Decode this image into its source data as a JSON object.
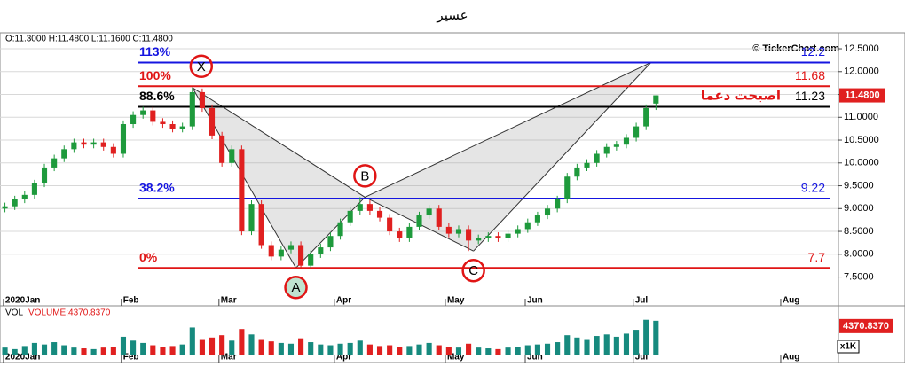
{
  "chart_data": {
    "type": "candlestick",
    "title": "عسير",
    "ohlc_label": "O:11.3000   H:11.4800  L:11.1600  C:11.4800",
    "watermark": "© TickerChart.com",
    "last_label": "11.4800",
    "last_value": 11.48,
    "xlim": [
      0,
      170
    ],
    "xticks": [
      {
        "value": 0.7,
        "label": "2020Jan"
      },
      {
        "value": 24.6,
        "label": "Feb"
      },
      {
        "value": 44.4,
        "label": "Mar"
      },
      {
        "value": 67.8,
        "label": "Apr"
      },
      {
        "value": 90.3,
        "label": "May"
      },
      {
        "value": 106.5,
        "label": "Jun"
      },
      {
        "value": 128.4,
        "label": "Jul"
      },
      {
        "value": 158.3,
        "label": "Aug"
      }
    ],
    "ylim": [
      6.87,
      12.85
    ],
    "yticks": [
      {
        "value": 12.5,
        "label": "12.5000"
      },
      {
        "value": 12,
        "label": "12.0000"
      },
      {
        "value": 11.5,
        "label": "11.5000"
      },
      {
        "value": 11,
        "label": "11.0000"
      },
      {
        "value": 10.5,
        "label": "10.5000"
      },
      {
        "value": 10,
        "label": "10.0000"
      },
      {
        "value": 9.5,
        "label": "9.5000"
      },
      {
        "value": 9,
        "label": "9.0000"
      },
      {
        "value": 8.5,
        "label": "8.5000"
      },
      {
        "value": 8,
        "label": "8.0000"
      },
      {
        "value": 7.5,
        "label": "7.5000"
      }
    ],
    "grid": true,
    "up_color": "#1e9a3c",
    "down_color": "#e02020",
    "x": [
      1,
      3,
      5,
      7,
      9,
      11,
      13,
      15,
      17,
      19,
      21,
      23,
      25,
      27,
      29,
      31,
      33,
      35,
      37,
      39,
      41,
      43,
      45,
      47,
      49,
      51,
      53,
      55,
      57,
      59,
      61,
      63,
      65,
      67,
      69,
      71,
      73,
      75,
      77,
      79,
      81,
      83,
      85,
      87,
      89,
      91,
      93,
      95,
      97,
      99,
      101,
      103,
      105,
      107,
      109,
      111,
      113,
      115,
      117,
      119,
      121,
      123,
      125,
      127,
      129,
      131,
      133
    ],
    "open": [
      9.0,
      9.05,
      9.2,
      9.3,
      9.55,
      9.9,
      10.1,
      10.3,
      10.45,
      10.4,
      10.45,
      10.35,
      10.2,
      10.85,
      11.05,
      11.15,
      10.9,
      10.85,
      10.75,
      10.8,
      11.55,
      11.2,
      10.6,
      10.0,
      10.3,
      8.5,
      9.1,
      8.2,
      7.95,
      8.1,
      8.2,
      7.75,
      8.0,
      8.15,
      8.4,
      8.7,
      8.95,
      9.1,
      8.95,
      8.8,
      8.5,
      8.35,
      8.6,
      8.85,
      9.0,
      8.6,
      8.45,
      8.55,
      8.3,
      8.35,
      8.4,
      8.35,
      8.45,
      8.55,
      8.7,
      8.85,
      9.0,
      9.2,
      9.7,
      9.9,
      10.0,
      10.2,
      10.35,
      10.4,
      10.55,
      10.8,
      11.3
    ],
    "high": [
      9.13,
      9.28,
      9.38,
      9.63,
      9.98,
      10.18,
      10.38,
      10.53,
      10.53,
      10.53,
      10.53,
      10.43,
      10.93,
      11.13,
      11.23,
      11.23,
      10.98,
      10.93,
      10.88,
      11.65,
      11.63,
      11.28,
      10.68,
      10.38,
      10.38,
      9.18,
      9.18,
      8.28,
      8.18,
      8.28,
      8.28,
      8.08,
      8.23,
      8.48,
      8.78,
      9.03,
      9.25,
      9.18,
      9.03,
      8.88,
      8.58,
      8.68,
      8.93,
      9.08,
      9.08,
      8.68,
      8.63,
      8.63,
      8.43,
      8.48,
      8.48,
      8.53,
      8.63,
      8.78,
      8.93,
      9.08,
      9.28,
      9.78,
      9.98,
      10.08,
      10.28,
      10.43,
      10.48,
      10.63,
      10.88,
      11.28,
      11.48
    ],
    "low": [
      8.92,
      8.97,
      9.12,
      9.22,
      9.47,
      9.82,
      10.02,
      10.22,
      10.32,
      10.32,
      10.27,
      10.12,
      10.12,
      10.77,
      10.97,
      10.82,
      10.77,
      10.67,
      10.67,
      10.72,
      11.12,
      10.52,
      9.92,
      9.92,
      8.42,
      8.42,
      8.12,
      7.87,
      7.87,
      8.02,
      7.7,
      7.7,
      7.92,
      8.07,
      8.32,
      8.62,
      8.87,
      8.87,
      8.72,
      8.42,
      8.27,
      8.27,
      8.52,
      8.77,
      8.52,
      8.37,
      8.37,
      8.07,
      8.22,
      8.27,
      8.27,
      8.27,
      8.37,
      8.47,
      8.62,
      8.77,
      8.92,
      9.12,
      9.62,
      9.82,
      9.92,
      10.12,
      10.27,
      10.32,
      10.47,
      10.72,
      11.16
    ],
    "close": [
      9.05,
      9.2,
      9.3,
      9.55,
      9.9,
      10.1,
      10.3,
      10.45,
      10.4,
      10.45,
      10.35,
      10.2,
      10.85,
      11.05,
      11.15,
      10.9,
      10.85,
      10.75,
      10.8,
      11.55,
      11.2,
      10.6,
      10.0,
      10.3,
      8.5,
      9.1,
      8.2,
      7.95,
      8.1,
      8.2,
      7.75,
      8.0,
      8.15,
      8.4,
      8.7,
      8.95,
      9.1,
      8.95,
      8.8,
      8.5,
      8.35,
      8.6,
      8.85,
      9.0,
      8.6,
      8.45,
      8.55,
      8.3,
      8.35,
      8.4,
      8.35,
      8.45,
      8.55,
      8.7,
      8.85,
      9.0,
      9.2,
      9.7,
      9.9,
      10.0,
      10.2,
      10.35,
      10.4,
      10.55,
      10.8,
      11.2,
      11.48
    ],
    "volume_title": "VOL",
    "volume_label": "VOLUME:4370.8370",
    "volume_last_label": "4370.8370",
    "volume_unit": "x1K",
    "volume_ylim": [
      0,
      5500
    ],
    "volume": [
      900,
      700,
      1100,
      1500,
      1300,
      1600,
      1200,
      900,
      800,
      700,
      900,
      1000,
      2300,
      1800,
      1500,
      1200,
      1000,
      1100,
      1300,
      3500,
      2000,
      2200,
      2500,
      1800,
      3300,
      2600,
      2000,
      1700,
      1500,
      1400,
      2100,
      1600,
      1300,
      1200,
      1400,
      1500,
      1800,
      1300,
      1100,
      1200,
      1000,
      1100,
      1300,
      1500,
      1200,
      1000,
      900,
      1400,
      900,
      800,
      700,
      900,
      1000,
      1200,
      1300,
      1400,
      1600,
      2500,
      2200,
      2000,
      2400,
      2600,
      2300,
      2700,
      3200,
      4500,
      4370.837
    ],
    "levels": [
      {
        "label": "113%",
        "value": 12.2,
        "color": "#1515e0"
      },
      {
        "label": "100%",
        "value": 11.68,
        "color": "#e01515"
      },
      {
        "label": "88.6%",
        "value": 11.23,
        "color": "#000000"
      },
      {
        "label": "38.2%",
        "value": 9.22,
        "color": "#1515e0"
      },
      {
        "label": "0%",
        "value": 7.7,
        "color": "#e01515"
      }
    ],
    "support_note": "اصبحت دعما",
    "pattern": {
      "labels": [
        "X",
        "A",
        "B",
        "C",
        null
      ],
      "x": [
        39,
        60,
        74,
        96,
        132
      ],
      "y": [
        11.65,
        7.7,
        9.25,
        8.07,
        12.2
      ],
      "color": "#e01515"
    }
  }
}
